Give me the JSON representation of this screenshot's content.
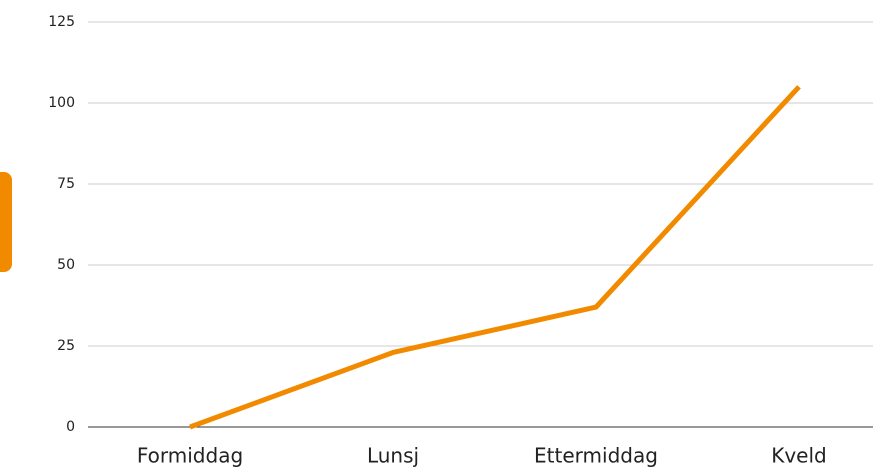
{
  "chart_data": {
    "type": "line",
    "categories": [
      "Formiddag",
      "Lunsj",
      "Ettermiddag",
      "Kveld"
    ],
    "values": [
      0,
      23,
      37,
      105
    ],
    "color": "#f28a00",
    "ylim": [
      0,
      125
    ],
    "yticks": [
      0,
      25,
      50,
      75,
      100,
      125
    ],
    "grid": true
  }
}
